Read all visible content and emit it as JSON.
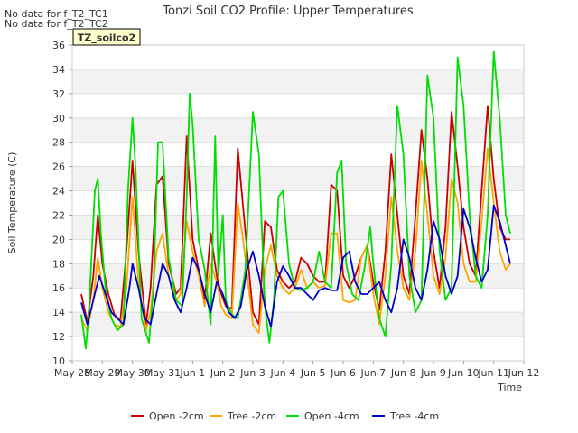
{
  "notes": [
    "No data for f_T2_TC1",
    "No data for f_T2_TC2"
  ],
  "badge": "TZ_soilco2",
  "chart_data": {
    "type": "line",
    "title": "Tonzi Soil CO2 Profile: Upper Temperatures",
    "xlabel": "Time",
    "ylabel": "Soil Temperature (C)",
    "ylim": [
      10,
      36
    ],
    "yticks": [
      10,
      12,
      14,
      16,
      18,
      20,
      22,
      24,
      26,
      28,
      30,
      32,
      34,
      36
    ],
    "xlim": [
      0,
      15
    ],
    "xticks": [
      {
        "v": 0,
        "label": "May 28"
      },
      {
        "v": 1,
        "label": "May 29"
      },
      {
        "v": 2,
        "label": "May 30"
      },
      {
        "v": 3,
        "label": "May 31"
      },
      {
        "v": 4,
        "label": "Jun 1"
      },
      {
        "v": 5,
        "label": "Jun 2"
      },
      {
        "v": 6,
        "label": "Jun 3"
      },
      {
        "v": 7,
        "label": "Jun 4"
      },
      {
        "v": 8,
        "label": "Jun 5"
      },
      {
        "v": 9,
        "label": "Jun 6"
      },
      {
        "v": 10,
        "label": "Jun 7"
      },
      {
        "v": 11,
        "label": "Jun 8"
      },
      {
        "v": 12,
        "label": "Jun 9"
      },
      {
        "v": 13,
        "label": "Jun 10"
      },
      {
        "v": 14,
        "label": "Jun 11"
      },
      {
        "v": 15,
        "label": "Jun 12"
      }
    ],
    "grid": true,
    "legend_position": "bottom",
    "series": [
      {
        "name": "Open -2cm",
        "color": "#cc0000",
        "x": [
          0.3,
          0.5,
          0.7,
          0.85,
          1.0,
          1.2,
          1.4,
          1.6,
          1.8,
          2.0,
          2.2,
          2.45,
          2.6,
          2.8,
          3.0,
          3.2,
          3.45,
          3.6,
          3.8,
          4.0,
          4.2,
          4.4,
          4.6,
          4.8,
          4.95,
          5.1,
          5.3,
          5.5,
          5.7,
          6.0,
          6.2,
          6.4,
          6.6,
          6.8,
          7.0,
          7.2,
          7.4,
          7.6,
          7.8,
          8.0,
          8.2,
          8.4,
          8.6,
          8.8,
          9.0,
          9.2,
          9.4,
          9.6,
          9.8,
          10.0,
          10.2,
          10.4,
          10.6,
          10.8,
          11.0,
          11.2,
          11.4,
          11.6,
          11.8,
          12.0,
          12.2,
          12.4,
          12.6,
          12.8,
          13.0,
          13.2,
          13.4,
          13.6,
          13.8,
          14.0,
          14.2,
          14.4,
          14.55
        ],
        "y": [
          15.5,
          13.2,
          17.0,
          22.0,
          18.0,
          15.5,
          13.8,
          13.3,
          19.0,
          26.5,
          19.0,
          13.0,
          16.0,
          24.5,
          25.2,
          18.0,
          15.5,
          16.0,
          28.5,
          20.0,
          17.5,
          15.0,
          20.5,
          17.0,
          15.5,
          14.5,
          14.3,
          27.5,
          22.0,
          14.0,
          13.0,
          21.5,
          21.0,
          17.5,
          16.5,
          16.0,
          16.5,
          18.5,
          18.0,
          17.0,
          16.5,
          16.5,
          24.5,
          24.0,
          17.0,
          16.0,
          17.0,
          18.5,
          19.5,
          16.5,
          14.2,
          19.0,
          27.0,
          22.0,
          17.0,
          15.5,
          22.0,
          29.0,
          25.0,
          19.0,
          16.0,
          21.0,
          30.5,
          26.0,
          21.0,
          18.0,
          17.0,
          24.0,
          31.0,
          25.0,
          21.0,
          20.0,
          20.0
        ]
      },
      {
        "name": "Tree -2cm",
        "color": "#ffa500",
        "x": [
          0.3,
          0.5,
          0.7,
          0.85,
          1.0,
          1.2,
          1.4,
          1.6,
          1.8,
          2.0,
          2.2,
          2.45,
          2.6,
          2.8,
          3.0,
          3.2,
          3.45,
          3.6,
          3.8,
          4.0,
          4.2,
          4.4,
          4.6,
          4.8,
          4.95,
          5.1,
          5.3,
          5.5,
          5.7,
          6.0,
          6.2,
          6.4,
          6.6,
          6.8,
          7.0,
          7.2,
          7.4,
          7.6,
          7.8,
          8.0,
          8.2,
          8.4,
          8.6,
          8.8,
          9.0,
          9.2,
          9.4,
          9.6,
          9.8,
          10.0,
          10.2,
          10.4,
          10.6,
          10.8,
          11.0,
          11.2,
          11.4,
          11.6,
          11.8,
          12.0,
          12.2,
          12.4,
          12.6,
          12.8,
          13.0,
          13.2,
          13.4,
          13.6,
          13.8,
          14.0,
          14.2,
          14.4,
          14.55
        ],
        "y": [
          13.5,
          12.5,
          15.0,
          18.5,
          16.0,
          14.0,
          13.0,
          12.8,
          16.0,
          23.5,
          16.5,
          12.5,
          14.0,
          19.0,
          20.5,
          17.0,
          15.0,
          15.5,
          21.5,
          19.0,
          17.0,
          14.5,
          18.0,
          16.5,
          14.5,
          13.8,
          13.5,
          23.0,
          19.5,
          13.0,
          12.3,
          17.5,
          19.5,
          17.0,
          16.0,
          15.5,
          16.0,
          17.5,
          16.0,
          16.5,
          16.0,
          16.2,
          20.5,
          20.5,
          15.0,
          14.8,
          15.0,
          18.5,
          19.5,
          15.5,
          13.0,
          17.0,
          23.5,
          19.0,
          16.0,
          15.0,
          19.0,
          26.5,
          22.0,
          17.0,
          15.5,
          18.5,
          25.0,
          23.0,
          18.0,
          16.5,
          16.5,
          21.5,
          27.5,
          23.0,
          19.0,
          17.5,
          18.0
        ]
      },
      {
        "name": "Open -4cm",
        "color": "#00dd00",
        "x": [
          0.3,
          0.45,
          0.55,
          0.75,
          0.85,
          0.95,
          1.1,
          1.3,
          1.5,
          1.7,
          1.85,
          2.0,
          2.1,
          2.3,
          2.55,
          2.7,
          2.85,
          3.0,
          3.2,
          3.45,
          3.65,
          3.8,
          3.9,
          4.0,
          4.2,
          4.4,
          4.6,
          4.75,
          4.85,
          5.0,
          5.1,
          5.3,
          5.5,
          5.75,
          6.0,
          6.2,
          6.4,
          6.55,
          6.7,
          6.85,
          7.0,
          7.2,
          7.4,
          7.6,
          7.8,
          8.0,
          8.2,
          8.4,
          8.6,
          8.8,
          8.95,
          9.1,
          9.3,
          9.5,
          9.7,
          9.9,
          10.0,
          10.2,
          10.4,
          10.6,
          10.8,
          11.0,
          11.2,
          11.4,
          11.6,
          11.8,
          12.0,
          12.2,
          12.4,
          12.6,
          12.8,
          13.0,
          13.2,
          13.4,
          13.6,
          13.8,
          14.0,
          14.2,
          14.4,
          14.55
        ],
        "y": [
          13.8,
          11.0,
          14.0,
          24.0,
          25.0,
          20.5,
          16.0,
          13.5,
          12.5,
          13.0,
          24.0,
          30.0,
          26.0,
          13.5,
          11.5,
          16.0,
          28.0,
          28.0,
          18.5,
          15.0,
          14.5,
          23.5,
          32.0,
          29.5,
          20.0,
          17.5,
          13.0,
          28.5,
          17.0,
          22.0,
          15.0,
          13.8,
          13.5,
          17.5,
          30.5,
          27.0,
          14.5,
          11.5,
          15.0,
          23.5,
          24.0,
          18.0,
          16.0,
          15.8,
          16.0,
          16.5,
          19.0,
          16.5,
          16.0,
          25.5,
          26.5,
          18.0,
          15.5,
          15.0,
          17.5,
          21.0,
          18.0,
          13.5,
          12.0,
          18.0,
          31.0,
          27.0,
          17.0,
          14.0,
          15.0,
          33.5,
          30.0,
          19.0,
          15.0,
          16.0,
          35.0,
          31.0,
          22.0,
          17.0,
          16.0,
          22.0,
          35.5,
          30.0,
          22.0,
          20.5
        ]
      },
      {
        "name": "Tree -4cm",
        "color": "#0000cc",
        "x": [
          0.3,
          0.5,
          0.7,
          0.9,
          1.1,
          1.3,
          1.5,
          1.7,
          1.9,
          2.0,
          2.2,
          2.4,
          2.6,
          2.8,
          3.0,
          3.2,
          3.4,
          3.6,
          3.8,
          4.0,
          4.2,
          4.4,
          4.6,
          4.8,
          5.0,
          5.2,
          5.4,
          5.6,
          5.8,
          6.0,
          6.2,
          6.4,
          6.6,
          6.8,
          7.0,
          7.2,
          7.4,
          7.6,
          7.8,
          8.0,
          8.2,
          8.4,
          8.6,
          8.8,
          9.0,
          9.2,
          9.4,
          9.6,
          9.8,
          10.0,
          10.2,
          10.4,
          10.6,
          10.8,
          11.0,
          11.2,
          11.4,
          11.6,
          11.8,
          12.0,
          12.2,
          12.4,
          12.6,
          12.8,
          13.0,
          13.2,
          13.4,
          13.6,
          13.8,
          14.0,
          14.2,
          14.4,
          14.55
        ],
        "y": [
          14.8,
          13.0,
          15.0,
          17.0,
          15.5,
          14.0,
          13.5,
          13.0,
          16.0,
          18.0,
          16.0,
          13.5,
          13.0,
          15.5,
          18.0,
          17.0,
          15.0,
          14.0,
          16.0,
          18.5,
          17.5,
          15.5,
          14.0,
          16.5,
          15.5,
          14.0,
          13.5,
          14.5,
          17.5,
          19.0,
          17.0,
          14.5,
          12.8,
          16.5,
          17.8,
          17.0,
          16.0,
          16.0,
          15.5,
          15.0,
          15.8,
          16.0,
          15.8,
          15.8,
          18.5,
          19.0,
          16.5,
          15.5,
          15.5,
          16.0,
          16.5,
          15.0,
          14.0,
          16.0,
          20.0,
          18.5,
          16.0,
          15.0,
          17.5,
          21.5,
          20.0,
          17.0,
          15.5,
          17.0,
          22.5,
          21.0,
          18.5,
          16.5,
          17.5,
          22.8,
          21.5,
          19.5,
          18.0
        ]
      }
    ]
  }
}
